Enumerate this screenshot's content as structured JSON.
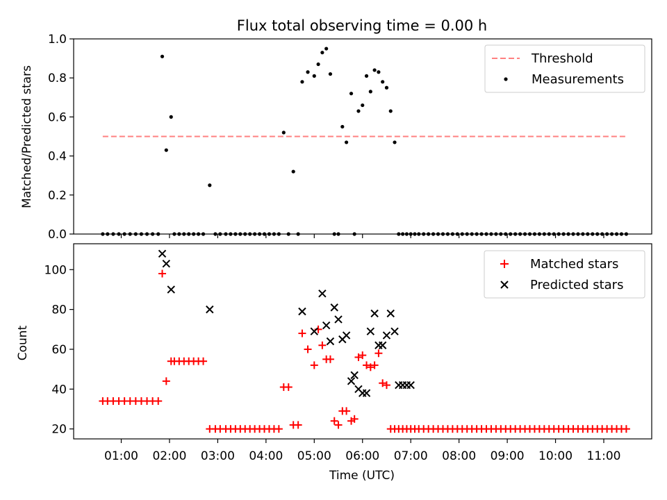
{
  "chart_data": [
    {
      "type": "scatter",
      "title": "Flux total observing time = 0.00 h",
      "xlabel": "",
      "ylabel": "Matched/Predicted stars",
      "ylim": [
        0,
        1.0
      ],
      "yticks": [
        "0.0",
        "0.2",
        "0.4",
        "0.6",
        "0.8",
        "1.0"
      ],
      "legend_position": "top-right",
      "threshold": {
        "name": "Threshold",
        "y": 0.5,
        "x_range": [
          "00:37",
          "11:30"
        ],
        "color": "#ff8080"
      },
      "series": [
        {
          "name": "Measurements",
          "marker": "dot",
          "color": "#000000",
          "x": [
            "00:37",
            "00:43",
            "00:50",
            "00:57",
            "01:04",
            "01:11",
            "01:18",
            "01:25",
            "01:32",
            "01:39",
            "01:46",
            "01:51",
            "01:56",
            "02:02",
            "02:06",
            "02:12",
            "02:18",
            "02:24",
            "02:30",
            "02:36",
            "02:42",
            "02:50",
            "02:57",
            "03:03",
            "03:10",
            "03:16",
            "03:22",
            "03:28",
            "03:34",
            "03:40",
            "03:46",
            "03:52",
            "03:58",
            "04:04",
            "04:10",
            "04:16",
            "04:22",
            "04:28",
            "04:34",
            "04:40",
            "04:45",
            "04:52",
            "05:00",
            "05:05",
            "05:10",
            "05:15",
            "05:20",
            "05:25",
            "05:30",
            "05:35",
            "05:40",
            "05:46",
            "05:50",
            "05:55",
            "06:00",
            "06:05",
            "06:10",
            "06:15",
            "06:20",
            "06:25",
            "06:30",
            "06:35",
            "06:40",
            "06:45",
            "06:50",
            "06:55",
            "07:00",
            "07:05",
            "07:10",
            "07:16",
            "07:22",
            "07:28",
            "07:34",
            "07:40",
            "07:46",
            "07:52",
            "07:58",
            "08:04",
            "08:10",
            "08:16",
            "08:22",
            "08:28",
            "08:34",
            "08:40",
            "08:46",
            "08:52",
            "08:58",
            "09:04",
            "09:10",
            "09:16",
            "09:22",
            "09:28",
            "09:34",
            "09:40",
            "09:46",
            "09:52",
            "09:58",
            "10:04",
            "10:10",
            "10:16",
            "10:22",
            "10:28",
            "10:34",
            "10:40",
            "10:46",
            "10:52",
            "10:58",
            "11:04",
            "11:10",
            "11:16",
            "11:22",
            "11:28"
          ],
          "y": [
            0,
            0,
            0,
            0,
            0,
            0,
            0,
            0,
            0,
            0,
            0,
            0.91,
            0.43,
            0.6,
            0,
            0,
            0,
            0,
            0,
            0,
            0,
            0.25,
            0,
            0,
            0,
            0,
            0,
            0,
            0,
            0,
            0,
            0,
            0,
            0,
            0,
            0,
            0.52,
            0,
            0.32,
            0,
            0.78,
            0.83,
            0.81,
            0.87,
            0.93,
            0.95,
            0.82,
            0,
            0,
            0.55,
            0.47,
            0.72,
            0,
            0.63,
            0.66,
            0.81,
            0.73,
            0.84,
            0.83,
            0.78,
            0.75,
            0.63,
            0.47,
            0,
            0,
            0,
            0,
            0,
            0,
            0,
            0,
            0,
            0,
            0,
            0,
            0,
            0,
            0,
            0,
            0,
            0,
            0,
            0,
            0,
            0,
            0,
            0,
            0,
            0,
            0,
            0,
            0,
            0,
            0,
            0,
            0,
            0,
            0,
            0,
            0,
            0,
            0,
            0,
            0,
            0,
            0,
            0,
            0,
            0,
            0,
            0,
            0
          ]
        }
      ]
    },
    {
      "type": "scatter",
      "title": "",
      "xlabel": "Time (UTC)",
      "ylabel": "Count",
      "ylim": [
        15,
        113
      ],
      "yticks": [
        "20",
        "40",
        "60",
        "80",
        "100"
      ],
      "xticks": [
        "01:00",
        "02:00",
        "03:00",
        "04:00",
        "05:00",
        "06:00",
        "07:00",
        "08:00",
        "09:00",
        "10:00",
        "11:00"
      ],
      "legend_position": "top-right",
      "series": [
        {
          "name": "Matched stars",
          "marker": "plus",
          "color": "#ff0000",
          "x": [
            "00:37",
            "00:43",
            "00:50",
            "00:57",
            "01:04",
            "01:11",
            "01:18",
            "01:25",
            "01:32",
            "01:39",
            "01:46",
            "01:51",
            "01:56",
            "02:02",
            "02:06",
            "02:12",
            "02:18",
            "02:24",
            "02:30",
            "02:36",
            "02:42",
            "02:50",
            "02:57",
            "03:03",
            "03:10",
            "03:16",
            "03:22",
            "03:28",
            "03:34",
            "03:40",
            "03:46",
            "03:52",
            "03:58",
            "04:04",
            "04:10",
            "04:16",
            "04:22",
            "04:28",
            "04:34",
            "04:40",
            "04:45",
            "04:52",
            "05:00",
            "05:05",
            "05:10",
            "05:15",
            "05:20",
            "05:25",
            "05:30",
            "05:35",
            "05:40",
            "05:46",
            "05:50",
            "05:55",
            "06:00",
            "06:05",
            "06:10",
            "06:15",
            "06:20",
            "06:25",
            "06:30",
            "06:35",
            "06:40",
            "06:45",
            "06:50",
            "06:55",
            "07:00",
            "07:05",
            "07:10",
            "07:16",
            "07:22",
            "07:28",
            "07:34",
            "07:40",
            "07:46",
            "07:52",
            "07:58",
            "08:04",
            "08:10",
            "08:16",
            "08:22",
            "08:28",
            "08:34",
            "08:40",
            "08:46",
            "08:52",
            "08:58",
            "09:04",
            "09:10",
            "09:16",
            "09:22",
            "09:28",
            "09:34",
            "09:40",
            "09:46",
            "09:52",
            "09:58",
            "10:04",
            "10:10",
            "10:16",
            "10:22",
            "10:28",
            "10:34",
            "10:40",
            "10:46",
            "10:52",
            "10:58",
            "11:04",
            "11:10",
            "11:16",
            "11:22",
            "11:28"
          ],
          "y": [
            34,
            34,
            34,
            34,
            34,
            34,
            34,
            34,
            34,
            34,
            34,
            98,
            44,
            54,
            54,
            54,
            54,
            54,
            54,
            54,
            54,
            20,
            20,
            20,
            20,
            20,
            20,
            20,
            20,
            20,
            20,
            20,
            20,
            20,
            20,
            20,
            41,
            41,
            22,
            22,
            68,
            60,
            52,
            70,
            62,
            55,
            55,
            24,
            22,
            29,
            29,
            24,
            25,
            56,
            57,
            52,
            51,
            52,
            58,
            43,
            42,
            20,
            20,
            20,
            20,
            20,
            20,
            20,
            20,
            20,
            20,
            20,
            20,
            20,
            20,
            20,
            20,
            20,
            20,
            20,
            20,
            20,
            20,
            20,
            20,
            20,
            20,
            20,
            20,
            20,
            20,
            20,
            20,
            20,
            20,
            20,
            20,
            20,
            20,
            20,
            20,
            20,
            20,
            20,
            20,
            20,
            20,
            20,
            20,
            20,
            20,
            20
          ]
        },
        {
          "name": "Predicted stars",
          "marker": "x",
          "color": "#000000",
          "x": [
            "01:51",
            "01:56",
            "02:02",
            "02:50",
            "04:45",
            "05:00",
            "05:10",
            "05:15",
            "05:20",
            "05:25",
            "05:30",
            "05:35",
            "05:40",
            "05:46",
            "05:50",
            "05:55",
            "06:00",
            "06:05",
            "06:10",
            "06:15",
            "06:20",
            "06:25",
            "06:30",
            "06:35",
            "06:40",
            "06:45",
            "06:50",
            "06:55",
            "07:00"
          ],
          "y": [
            108,
            103,
            90,
            80,
            79,
            69,
            88,
            72,
            64,
            81,
            75,
            65,
            67,
            44,
            47,
            40,
            38,
            38,
            69,
            78,
            62,
            62,
            67,
            78,
            69,
            42,
            42,
            42,
            42
          ]
        }
      ]
    }
  ]
}
